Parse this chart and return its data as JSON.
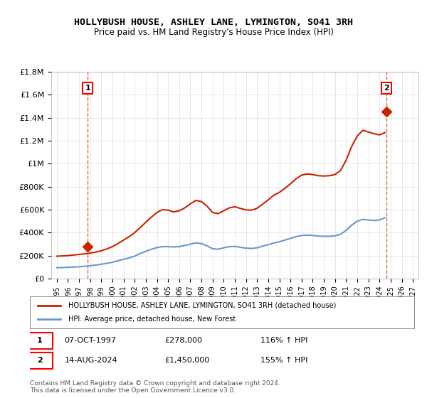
{
  "title": "HOLLYBUSH HOUSE, ASHLEY LANE, LYMINGTON, SO41 3RH",
  "subtitle": "Price paid vs. HM Land Registry's House Price Index (HPI)",
  "ylim": [
    0,
    1800000
  ],
  "yticks": [
    0,
    200000,
    400000,
    600000,
    800000,
    1000000,
    1200000,
    1400000,
    1600000,
    1800000
  ],
  "ytick_labels": [
    "£0",
    "£200K",
    "£400K",
    "£600K",
    "£800K",
    "£1M",
    "£1.2M",
    "£1.4M",
    "£1.6M",
    "£1.8M"
  ],
  "hpi_color": "#6699cc",
  "price_color": "#cc2200",
  "marker_color": "#cc2200",
  "dashed_line_color": "#cc2200",
  "background_color": "#ffffff",
  "grid_color": "#dddddd",
  "legend_label_price": "HOLLYBUSH HOUSE, ASHLEY LANE, LYMINGTON, SO41 3RH (detached house)",
  "legend_label_hpi": "HPI: Average price, detached house, New Forest",
  "annotation1_label": "1",
  "annotation1_date": "07-OCT-1997",
  "annotation1_price": "£278,000",
  "annotation1_hpi": "116% ↑ HPI",
  "annotation2_label": "2",
  "annotation2_date": "14-AUG-2024",
  "annotation2_price": "£1,450,000",
  "annotation2_hpi": "155% ↑ HPI",
  "footer": "Contains HM Land Registry data © Crown copyright and database right 2024.\nThis data is licensed under the Open Government Licence v3.0.",
  "sale1_x": 1997.77,
  "sale1_y": 278000,
  "sale2_x": 2024.62,
  "sale2_y": 1450000,
  "hpi_x": [
    1995.0,
    1995.5,
    1996.0,
    1996.5,
    1997.0,
    1997.5,
    1998.0,
    1998.5,
    1999.0,
    1999.5,
    2000.0,
    2000.5,
    2001.0,
    2001.5,
    2002.0,
    2002.5,
    2003.0,
    2003.5,
    2004.0,
    2004.5,
    2005.0,
    2005.5,
    2006.0,
    2006.5,
    2007.0,
    2007.5,
    2008.0,
    2008.5,
    2009.0,
    2009.5,
    2010.0,
    2010.5,
    2011.0,
    2011.5,
    2012.0,
    2012.5,
    2013.0,
    2013.5,
    2014.0,
    2014.5,
    2015.0,
    2015.5,
    2016.0,
    2016.5,
    2017.0,
    2017.5,
    2018.0,
    2018.5,
    2019.0,
    2019.5,
    2020.0,
    2020.5,
    2021.0,
    2021.5,
    2022.0,
    2022.5,
    2023.0,
    2023.5,
    2024.0,
    2024.5
  ],
  "hpi_y": [
    95000,
    96000,
    98000,
    100000,
    103000,
    107000,
    112000,
    118000,
    125000,
    133000,
    142000,
    155000,
    168000,
    180000,
    195000,
    218000,
    238000,
    255000,
    270000,
    278000,
    278000,
    275000,
    278000,
    288000,
    300000,
    310000,
    305000,
    285000,
    260000,
    255000,
    268000,
    278000,
    280000,
    272000,
    265000,
    262000,
    268000,
    282000,
    295000,
    310000,
    320000,
    335000,
    350000,
    365000,
    375000,
    378000,
    375000,
    370000,
    368000,
    368000,
    372000,
    385000,
    420000,
    465000,
    500000,
    515000,
    510000,
    505000,
    510000,
    530000
  ],
  "price_x": [
    1995.0,
    1995.5,
    1996.0,
    1996.5,
    1997.0,
    1997.5,
    1998.0,
    1998.5,
    1999.0,
    1999.5,
    2000.0,
    2000.5,
    2001.0,
    2001.5,
    2002.0,
    2002.5,
    2003.0,
    2003.5,
    2004.0,
    2004.5,
    2005.0,
    2005.5,
    2006.0,
    2006.5,
    2007.0,
    2007.5,
    2008.0,
    2008.5,
    2009.0,
    2009.5,
    2010.0,
    2010.5,
    2011.0,
    2011.5,
    2012.0,
    2012.5,
    2013.0,
    2013.5,
    2014.0,
    2014.5,
    2015.0,
    2015.5,
    2016.0,
    2016.5,
    2017.0,
    2017.5,
    2018.0,
    2018.5,
    2019.0,
    2019.5,
    2020.0,
    2020.5,
    2021.0,
    2021.5,
    2022.0,
    2022.5,
    2023.0,
    2023.5,
    2024.0,
    2024.5
  ],
  "price_y": [
    195000,
    197000,
    200000,
    205000,
    210000,
    215000,
    222000,
    230000,
    242000,
    258000,
    278000,
    305000,
    335000,
    365000,
    400000,
    445000,
    490000,
    535000,
    575000,
    600000,
    595000,
    580000,
    590000,
    615000,
    650000,
    680000,
    670000,
    630000,
    575000,
    565000,
    590000,
    615000,
    625000,
    610000,
    598000,
    595000,
    612000,
    648000,
    685000,
    725000,
    750000,
    785000,
    825000,
    868000,
    900000,
    910000,
    905000,
    895000,
    892000,
    895000,
    905000,
    940000,
    1030000,
    1150000,
    1240000,
    1290000,
    1275000,
    1260000,
    1250000,
    1270000
  ],
  "xlim": [
    1994.5,
    2027.5
  ],
  "xticks": [
    1995,
    1996,
    1997,
    1998,
    1999,
    2000,
    2001,
    2002,
    2003,
    2004,
    2005,
    2006,
    2007,
    2008,
    2009,
    2010,
    2011,
    2012,
    2013,
    2014,
    2015,
    2016,
    2017,
    2018,
    2019,
    2020,
    2021,
    2022,
    2023,
    2024,
    2025,
    2026,
    2027
  ]
}
